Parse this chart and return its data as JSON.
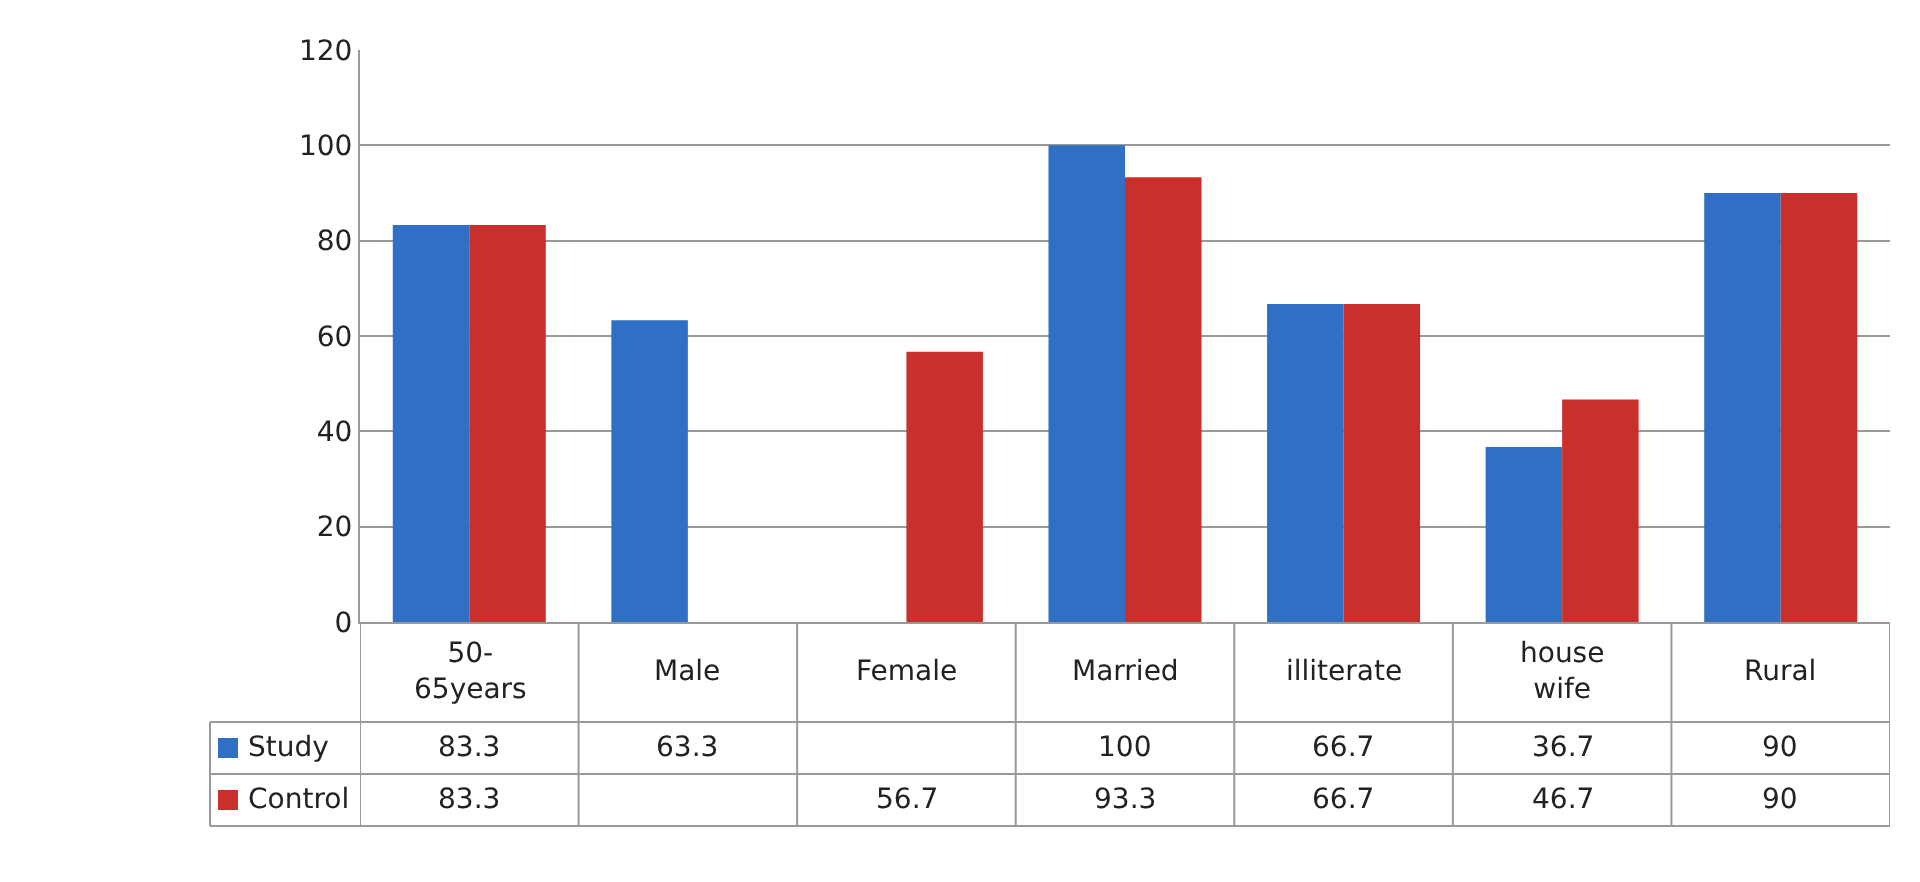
{
  "chart_data": {
    "type": "bar",
    "categories": [
      "50-\n65years",
      "Male",
      "Female",
      "Married",
      "illiterate",
      "house\nwife",
      "Rural"
    ],
    "series": [
      {
        "name": "Study",
        "color": "#2f6fc4",
        "values": [
          83.3,
          63.3,
          null,
          100,
          66.7,
          36.7,
          90
        ]
      },
      {
        "name": "Control",
        "color": "#c9302c",
        "values": [
          83.3,
          null,
          56.7,
          93.3,
          66.7,
          46.7,
          90
        ]
      }
    ],
    "ylim": [
      0,
      120
    ],
    "yticks": [
      0,
      20,
      40,
      60,
      80,
      100,
      120
    ],
    "grid": "y",
    "legend": "bottom left",
    "data_labels": true
  }
}
